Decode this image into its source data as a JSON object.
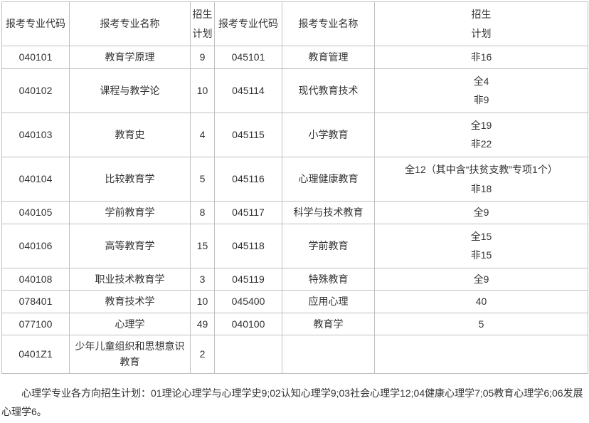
{
  "headers": {
    "code1": "报考专业代码",
    "name1": "报考专业名称",
    "plan1_l1": "招生",
    "plan1_l2": "计划",
    "code2": "报考专业代码",
    "name2": "报考专业名称",
    "plan2_l1": "招生",
    "plan2_l2": "计划"
  },
  "rows": [
    {
      "c1": "040101",
      "n1": "教育学原理",
      "p1": "9",
      "c2": "045101",
      "n2": "教育管理",
      "p2": "非16"
    },
    {
      "c1": "040102",
      "n1": "课程与教学论",
      "p1": "10",
      "c2": "045114",
      "n2": "现代教育技术",
      "p2_l1": "全4",
      "p2_l2": "非9"
    },
    {
      "c1": "040103",
      "n1": "教育史",
      "p1": "4",
      "c2": "045115",
      "n2": "小学教育",
      "p2_l1": "全19",
      "p2_l2": "非22"
    },
    {
      "c1": "040104",
      "n1": "比较教育学",
      "p1": "5",
      "c2": "045116",
      "n2": "心理健康教育",
      "p2_l1": "全12（其中含“扶贫支教”专项1个）",
      "p2_l2": "非18"
    },
    {
      "c1": "040105",
      "n1": "学前教育学",
      "p1": "8",
      "c2": "045117",
      "n2": "科学与技术教育",
      "p2": "全9"
    },
    {
      "c1": "040106",
      "n1": "高等教育学",
      "p1": "15",
      "c2": "045118",
      "n2": "学前教育",
      "p2_l1": "全15",
      "p2_l2": "非15"
    },
    {
      "c1": "040108",
      "n1": "职业技术教育学",
      "p1": "3",
      "c2": "045119",
      "n2": "特殊教育",
      "p2": "全9"
    },
    {
      "c1": "078401",
      "n1": "教育技术学",
      "p1": "10",
      "c2": "045400",
      "n2": "应用心理",
      "p2": "40"
    },
    {
      "c1": "077100",
      "n1": "心理学",
      "p1": "49",
      "c2": "040100",
      "n2": "教育学",
      "p2": "5"
    },
    {
      "c1": "0401Z1",
      "n1": "少年儿童组织和思想意识教育",
      "p1": "2",
      "c2": "",
      "n2": "",
      "p2": ""
    }
  ],
  "note": "心理学专业各方向招生计划：01理论心理学与心理学史9;02认知心理学9;03社会心理学12;04健康心理学7;05教育心理学6;06发展心理学6。"
}
